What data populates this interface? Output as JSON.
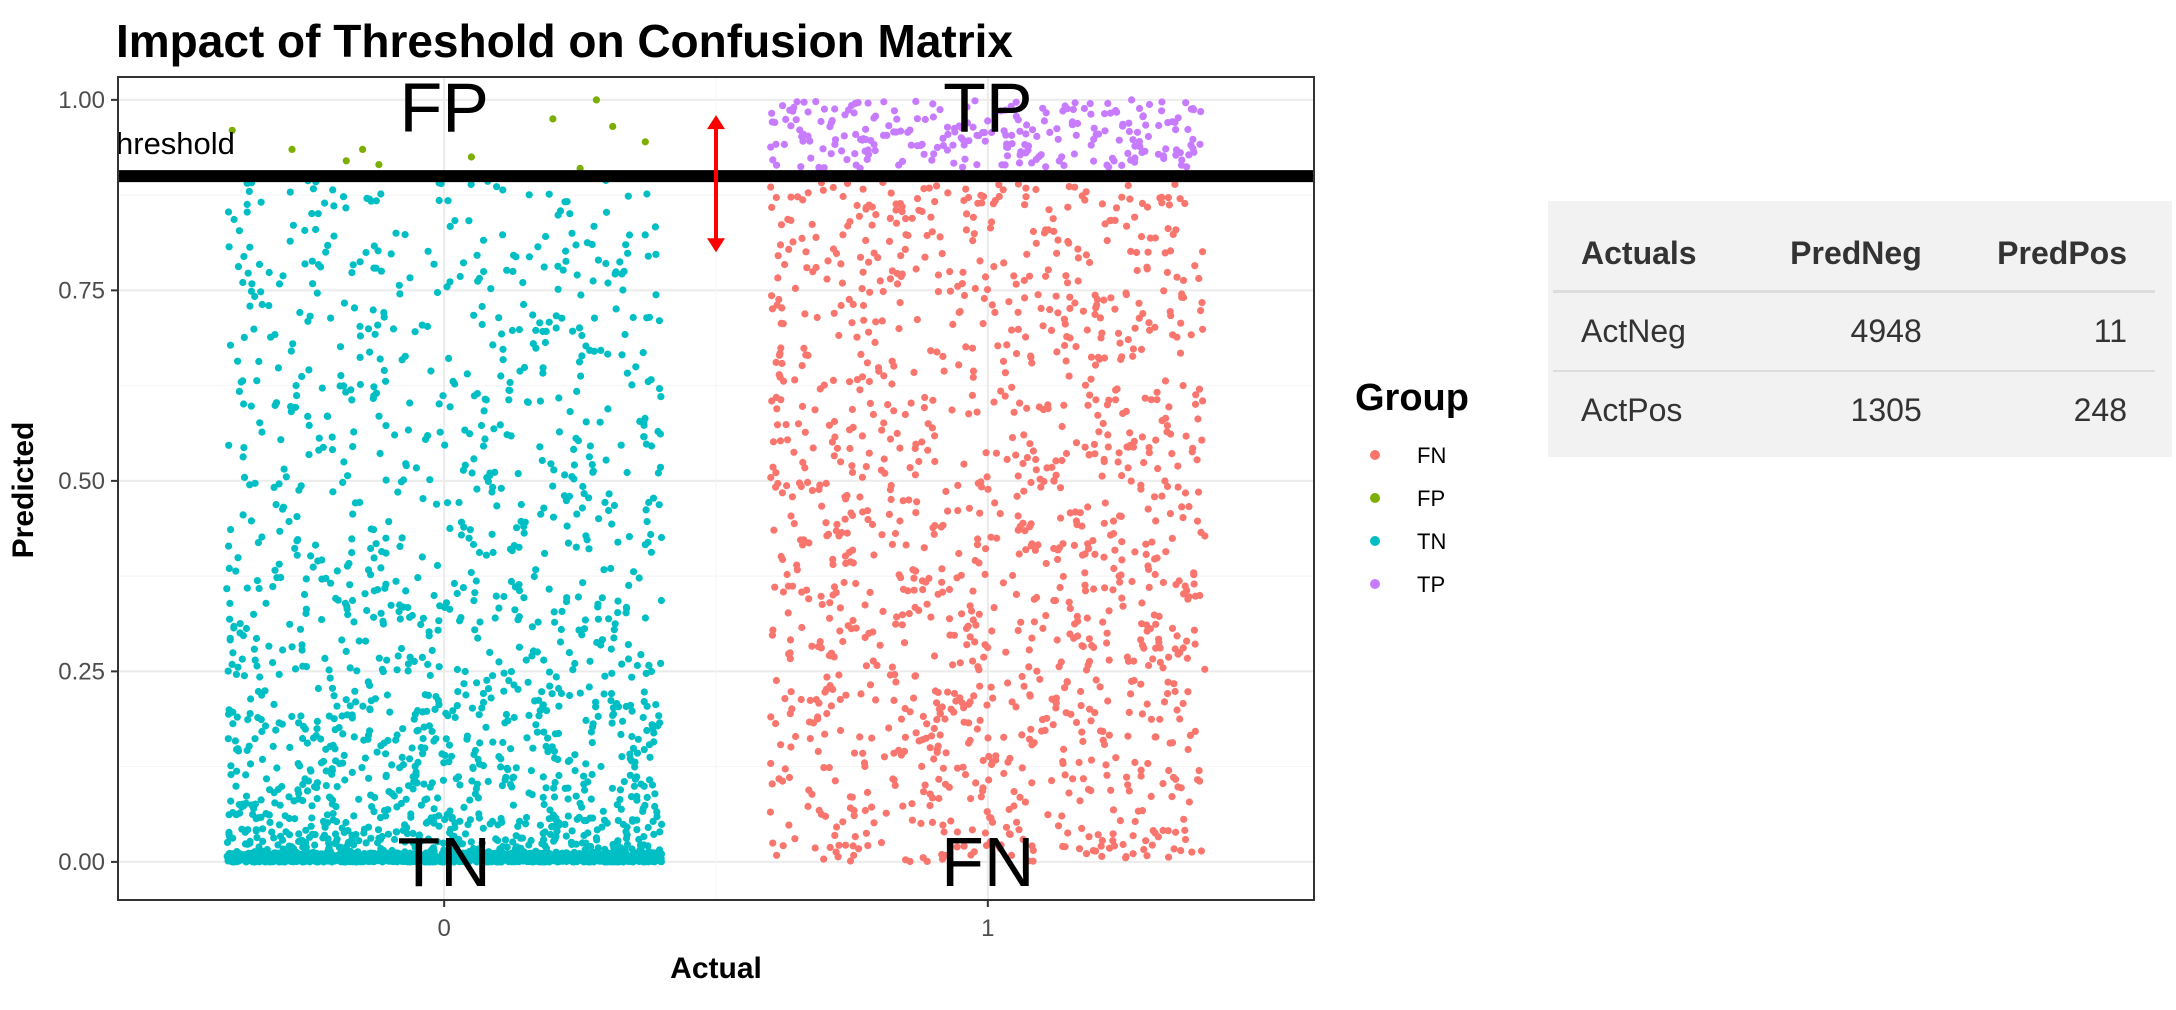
{
  "chart_data": {
    "type": "scatter",
    "title": "Impact of Threshold on Confusion Matrix",
    "xlabel": "Actual",
    "ylabel": "Predicted",
    "x_categories": [
      "0",
      "1"
    ],
    "x_jitter": [
      -0.4,
      0.4
    ],
    "ylim": [
      0,
      1
    ],
    "yticks": [
      "0.00",
      "0.25",
      "0.50",
      "0.75",
      "1.00"
    ],
    "grid": true,
    "threshold": 0.9,
    "threshold_label": "hreshold",
    "quadrant_labels": [
      {
        "text": "FP",
        "x": 0,
        "y": 0.99
      },
      {
        "text": "TP",
        "x": 1,
        "y": 0.99
      },
      {
        "text": "TN",
        "x": 0,
        "y": 0.0
      },
      {
        "text": "FN",
        "x": 1,
        "y": 0.0
      }
    ],
    "arrow": {
      "x": 0.5,
      "y_from": 0.8,
      "y_to": 0.98,
      "color": "#ff0000"
    },
    "legend": {
      "title": "Group",
      "position": "right",
      "entries": [
        {
          "label": "FN",
          "color": "#f8766d"
        },
        {
          "label": "FP",
          "color": "#7cae00"
        },
        {
          "label": "TN",
          "color": "#00bfc4"
        },
        {
          "label": "TP",
          "color": "#c77cff"
        }
      ]
    },
    "series": [
      {
        "name": "FP",
        "color": "#7cae00",
        "points": [
          [
            -0.28,
            0.935
          ],
          [
            -0.18,
            0.92
          ],
          [
            -0.15,
            0.935
          ],
          [
            0.05,
            0.925
          ],
          [
            0.2,
            0.975
          ],
          [
            0.28,
            1.0
          ],
          [
            0.31,
            0.965
          ],
          [
            0.37,
            0.945
          ],
          [
            -0.39,
            0.96
          ],
          [
            -0.12,
            0.915
          ],
          [
            0.25,
            0.91
          ]
        ]
      },
      {
        "name": "TN",
        "approx_count": 4948,
        "color": "#00bfc4",
        "x": 0,
        "y_range": [
          0,
          0.9
        ],
        "distribution": "dense near 0, sparse toward threshold"
      },
      {
        "name": "FN",
        "approx_count": 1305,
        "color": "#f8766d",
        "x": 1,
        "y_range": [
          0,
          0.9
        ],
        "distribution": "roughly uniform"
      },
      {
        "name": "TP",
        "approx_count": 248,
        "color": "#c77cff",
        "x": 1,
        "y_range": [
          0.9,
          1.0
        ],
        "distribution": "uniform"
      }
    ]
  },
  "table": {
    "headers": [
      "Actuals",
      "PredNeg",
      "PredPos"
    ],
    "rows": [
      [
        "ActNeg",
        "4948",
        "11"
      ],
      [
        "ActPos",
        "1305",
        "248"
      ]
    ]
  }
}
